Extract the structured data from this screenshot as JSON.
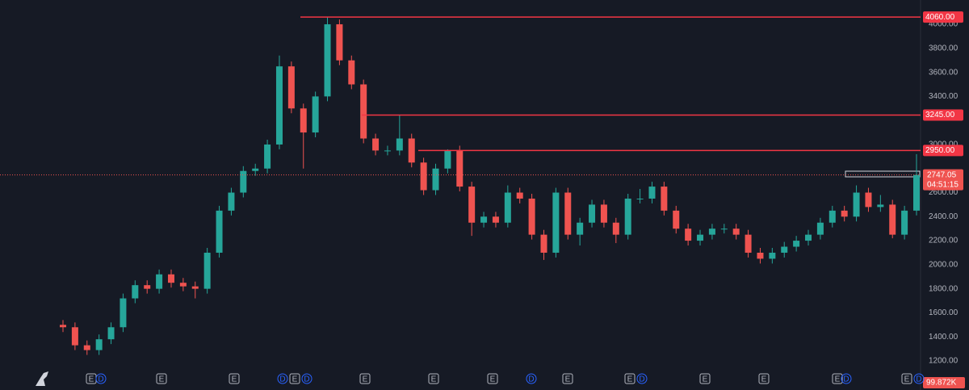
{
  "chart_data": {
    "type": "candlestick",
    "open": [
      1500,
      1480,
      1330,
      1290,
      1380,
      1480,
      1720,
      1830,
      1800,
      1920,
      1850,
      1820,
      1800,
      2100,
      2450,
      2600,
      2780,
      2800,
      3000,
      3650,
      3300,
      3100,
      3400,
      4000,
      3700,
      3500,
      3050,
      2950,
      2950,
      3050,
      2850,
      2620,
      2800,
      2950,
      2650,
      2350,
      2400,
      2350,
      2600,
      2550,
      2250,
      2100,
      2600,
      2250,
      2350,
      2500,
      2350,
      2250,
      2550,
      2550,
      2650,
      2450,
      2300,
      2200,
      2250,
      2300,
      2300,
      2250,
      2100,
      2050,
      2100,
      2150,
      2200,
      2250,
      2350,
      2450,
      2400,
      2600,
      2480,
      2500,
      2250,
      2450
    ],
    "high": [
      1540,
      1520,
      1370,
      1420,
      1520,
      1760,
      1870,
      1870,
      1960,
      1960,
      1890,
      1860,
      2140,
      2490,
      2640,
      2820,
      2840,
      3040,
      3740,
      3690,
      3340,
      3440,
      4060,
      4040,
      3740,
      3540,
      3090,
      2990,
      3245,
      3090,
      2890,
      2840,
      2960,
      2990,
      2690,
      2440,
      2440,
      2660,
      2640,
      2590,
      2290,
      2640,
      2640,
      2390,
      2540,
      2540,
      2390,
      2590,
      2630,
      2690,
      2690,
      2490,
      2340,
      2290,
      2340,
      2340,
      2340,
      2290,
      2140,
      2140,
      2190,
      2240,
      2290,
      2390,
      2490,
      2490,
      2660,
      2640,
      2580,
      2540,
      2490,
      2920
    ],
    "low": [
      1440,
      1290,
      1250,
      1250,
      1340,
      1440,
      1680,
      1760,
      1760,
      1810,
      1780,
      1720,
      1760,
      2060,
      2410,
      2560,
      2740,
      2760,
      2960,
      3260,
      2800,
      3060,
      3360,
      3660,
      3460,
      3010,
      2910,
      2910,
      2910,
      2810,
      2580,
      2580,
      2760,
      2610,
      2240,
      2310,
      2310,
      2310,
      2510,
      2210,
      2040,
      2060,
      2210,
      2160,
      2310,
      2310,
      2180,
      2210,
      2510,
      2510,
      2410,
      2260,
      2160,
      2160,
      2210,
      2260,
      2210,
      2060,
      2010,
      2010,
      2060,
      2110,
      2160,
      2210,
      2310,
      2360,
      2360,
      2440,
      2440,
      2220,
      2210,
      2410
    ],
    "close": [
      1480,
      1330,
      1290,
      1380,
      1480,
      1720,
      1830,
      1800,
      1920,
      1850,
      1820,
      1800,
      2100,
      2450,
      2600,
      2780,
      2800,
      3000,
      3650,
      3300,
      3100,
      3400,
      4000,
      3700,
      3500,
      3050,
      2950,
      2950,
      3050,
      2850,
      2620,
      2800,
      2950,
      2650,
      2350,
      2400,
      2350,
      2600,
      2550,
      2250,
      2100,
      2600,
      2250,
      2350,
      2500,
      2350,
      2250,
      2550,
      2550,
      2650,
      2450,
      2300,
      2200,
      2250,
      2300,
      2300,
      2250,
      2100,
      2050,
      2100,
      2150,
      2200,
      2250,
      2350,
      2450,
      2400,
      2600,
      2480,
      2500,
      2250,
      2450,
      2747.05
    ],
    "up_color": "#26a69a",
    "down_color": "#ef5350",
    "level_color": "#f23645",
    "ylim": [
      958,
      4202
    ],
    "yticks": [
      {
        "value": 1200,
        "label": "1200.00"
      },
      {
        "value": 1400,
        "label": "1400.00"
      },
      {
        "value": 1600,
        "label": "1600.00"
      },
      {
        "value": 1800,
        "label": "1800.00"
      },
      {
        "value": 2000,
        "label": "2000.00"
      },
      {
        "value": 2200,
        "label": "2200.00"
      },
      {
        "value": 2400,
        "label": "2400.00"
      },
      {
        "value": 2600,
        "label": "2600.00"
      },
      {
        "value": 3000,
        "label": "3000.00"
      },
      {
        "value": 3400,
        "label": "3400.00"
      },
      {
        "value": 3600,
        "label": "3600.00"
      },
      {
        "value": 3800,
        "label": "3800.00"
      },
      {
        "value": 4000,
        "label": "4000.00"
      }
    ],
    "levels": [
      {
        "value": 4060,
        "label": "4060.00"
      },
      {
        "value": 3245,
        "label": "3245.00"
      },
      {
        "value": 2950,
        "label": "2950.00"
      }
    ],
    "last_price": {
      "value": 2747.05,
      "label": "2747.05",
      "countdown": "04:51:15"
    },
    "volume_label": "99.872K",
    "events": [
      "E",
      "D",
      "E",
      "E",
      "D",
      "E",
      "D",
      "E",
      "E",
      "E",
      "D",
      "E",
      "E",
      "D",
      "E",
      "E",
      "E",
      "D",
      "E",
      "D"
    ],
    "grid": false
  }
}
